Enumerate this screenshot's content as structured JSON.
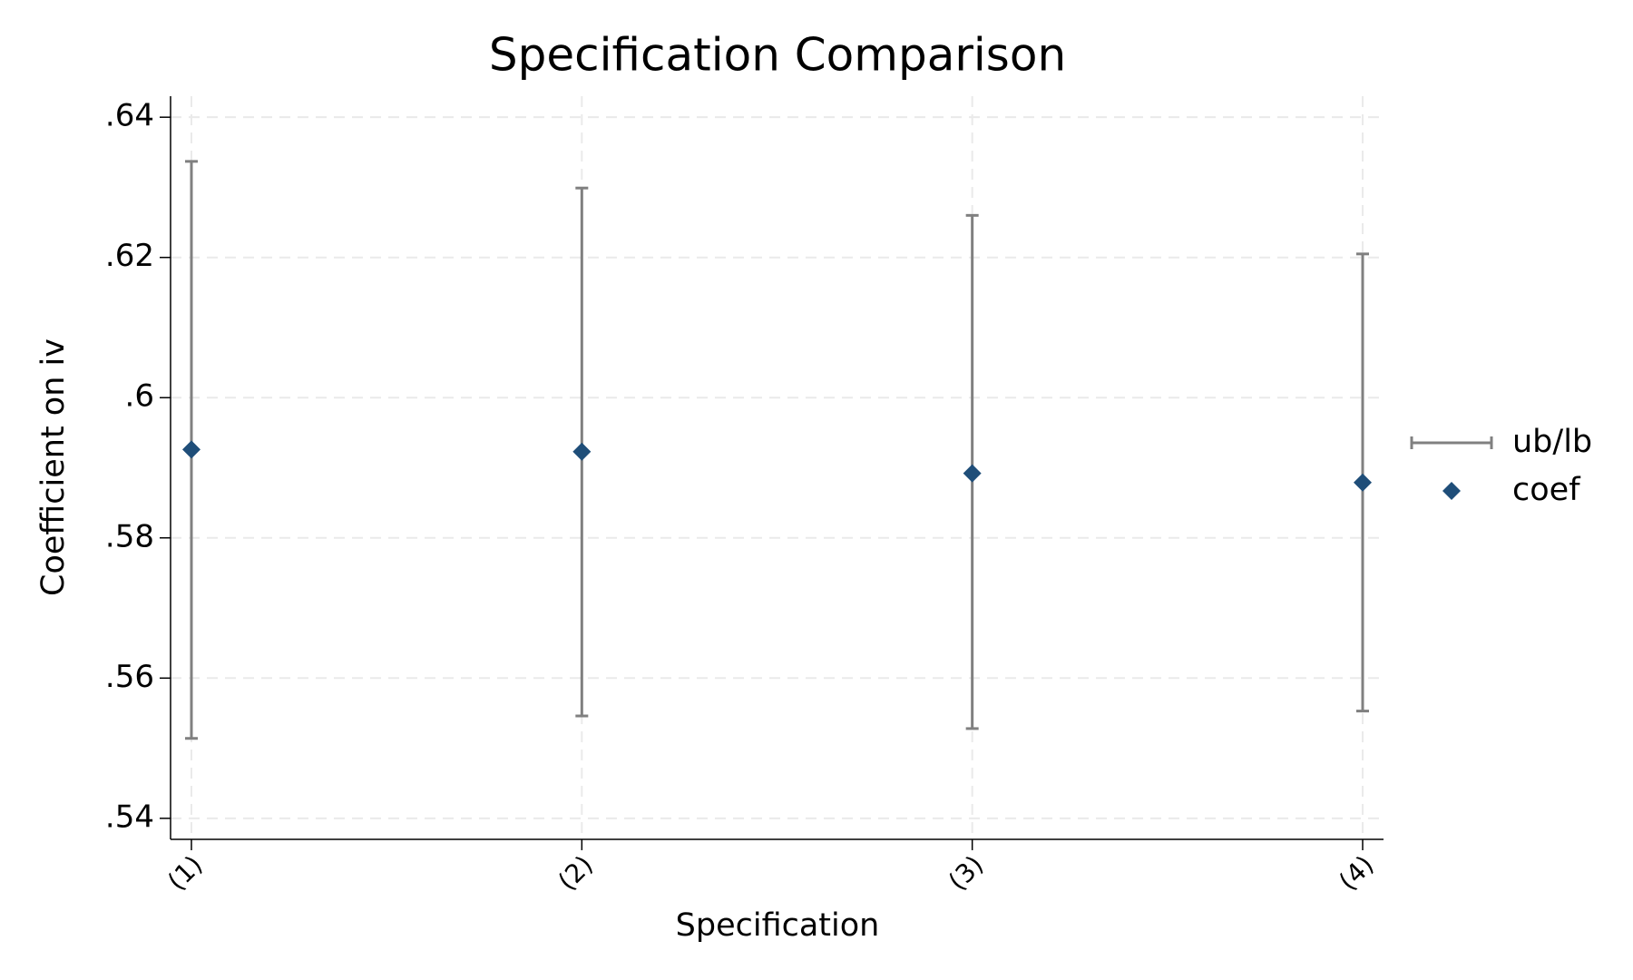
{
  "chart_data": {
    "type": "errorbar",
    "title": "Specification Comparison",
    "x_label": "Specification",
    "y_label": "Coefficient on iv",
    "categories": [
      "(1)",
      "(2)",
      "(3)",
      "(4)"
    ],
    "series": [
      {
        "name": "ub/lb",
        "color": "#808080",
        "upper": [
          0.6337,
          0.6299,
          0.626,
          0.6205
        ],
        "lower": [
          0.5514,
          0.5546,
          0.5528,
          0.5553
        ]
      },
      {
        "name": "coef",
        "color": "#1f4e79",
        "values": [
          0.5926,
          0.5923,
          0.5892,
          0.5879
        ]
      }
    ],
    "ylim": [
      0.537,
      0.643
    ],
    "yticks": [
      {
        "value": 0.54,
        "label": ".54"
      },
      {
        "value": 0.56,
        "label": ".56"
      },
      {
        "value": 0.58,
        "label": ".58"
      },
      {
        "value": 0.6,
        "label": ".6"
      },
      {
        "value": 0.62,
        "label": ".62"
      },
      {
        "value": 0.64,
        "label": ".64"
      }
    ],
    "grid": true,
    "legend": "right"
  }
}
